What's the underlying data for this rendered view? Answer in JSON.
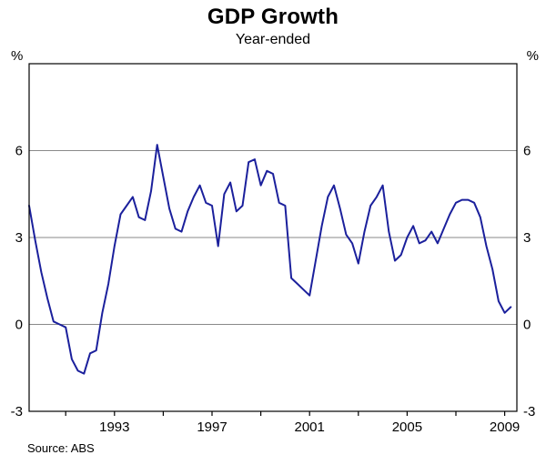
{
  "accent_color": "#1b209c",
  "chart_data": {
    "type": "line",
    "title": "GDP Growth",
    "subtitle": "Year-ended",
    "ylabel": "%",
    "source": "Source: ABS",
    "xlim": [
      1989.5,
      2009.5
    ],
    "ylim": [
      -3,
      9
    ],
    "grid": true,
    "y_gridlines": [
      0,
      3,
      6
    ],
    "y_tick_labels": [
      "6",
      "3",
      "0",
      "-3"
    ],
    "y_tick_values": [
      6,
      3,
      0,
      -3
    ],
    "x_ticks": [
      1991,
      1993,
      1995,
      1997,
      1999,
      2001,
      2003,
      2005,
      2007,
      2009
    ],
    "x_tick_labels": [
      "1993",
      "1997",
      "2001",
      "2005",
      "2009"
    ],
    "x_tick_label_values": [
      1993,
      1997,
      2001,
      2005,
      2009
    ],
    "legend_position": "none",
    "series": [
      {
        "name": "GDP growth, year-ended",
        "color": "#1b209c",
        "x": [
          1989.5,
          1989.75,
          1990.0,
          1990.25,
          1990.5,
          1990.75,
          1991.0,
          1991.25,
          1991.5,
          1991.75,
          1992.0,
          1992.25,
          1992.5,
          1992.75,
          1993.0,
          1993.25,
          1993.5,
          1993.75,
          1994.0,
          1994.25,
          1994.5,
          1994.75,
          1995.0,
          1995.25,
          1995.5,
          1995.75,
          1996.0,
          1996.25,
          1996.5,
          1996.75,
          1997.0,
          1997.25,
          1997.5,
          1997.75,
          1998.0,
          1998.25,
          1998.5,
          1998.75,
          1999.0,
          1999.25,
          1999.5,
          1999.75,
          2000.0,
          2000.25,
          2000.5,
          2000.75,
          2001.0,
          2001.25,
          2001.5,
          2001.75,
          2002.0,
          2002.25,
          2002.5,
          2002.75,
          2003.0,
          2003.25,
          2003.5,
          2003.75,
          2004.0,
          2004.25,
          2004.5,
          2004.75,
          2005.0,
          2005.25,
          2005.5,
          2005.75,
          2006.0,
          2006.25,
          2006.5,
          2006.75,
          2007.0,
          2007.25,
          2007.5,
          2007.75,
          2008.0,
          2008.25,
          2008.5,
          2008.75,
          2009.0,
          2009.25
        ],
        "y": [
          4.1,
          2.9,
          1.8,
          0.9,
          0.1,
          0.0,
          -0.1,
          -1.2,
          -1.6,
          -1.7,
          -1.0,
          -0.9,
          0.4,
          1.4,
          2.7,
          3.8,
          4.1,
          4.4,
          3.7,
          3.6,
          4.6,
          6.2,
          5.1,
          4.0,
          3.3,
          3.2,
          3.9,
          4.4,
          4.8,
          4.2,
          4.1,
          2.7,
          4.5,
          4.9,
          3.9,
          4.1,
          5.6,
          5.7,
          4.8,
          5.3,
          5.2,
          4.2,
          4.1,
          1.6,
          1.4,
          1.2,
          1.0,
          2.2,
          3.4,
          4.4,
          4.8,
          4.0,
          3.1,
          2.8,
          2.1,
          3.2,
          4.1,
          4.4,
          4.8,
          3.2,
          2.2,
          2.4,
          3.0,
          3.4,
          2.8,
          2.9,
          3.2,
          2.8,
          3.3,
          3.8,
          4.2,
          4.3,
          4.3,
          4.2,
          3.7,
          2.7,
          1.9,
          0.8,
          0.4,
          0.6
        ]
      }
    ]
  }
}
